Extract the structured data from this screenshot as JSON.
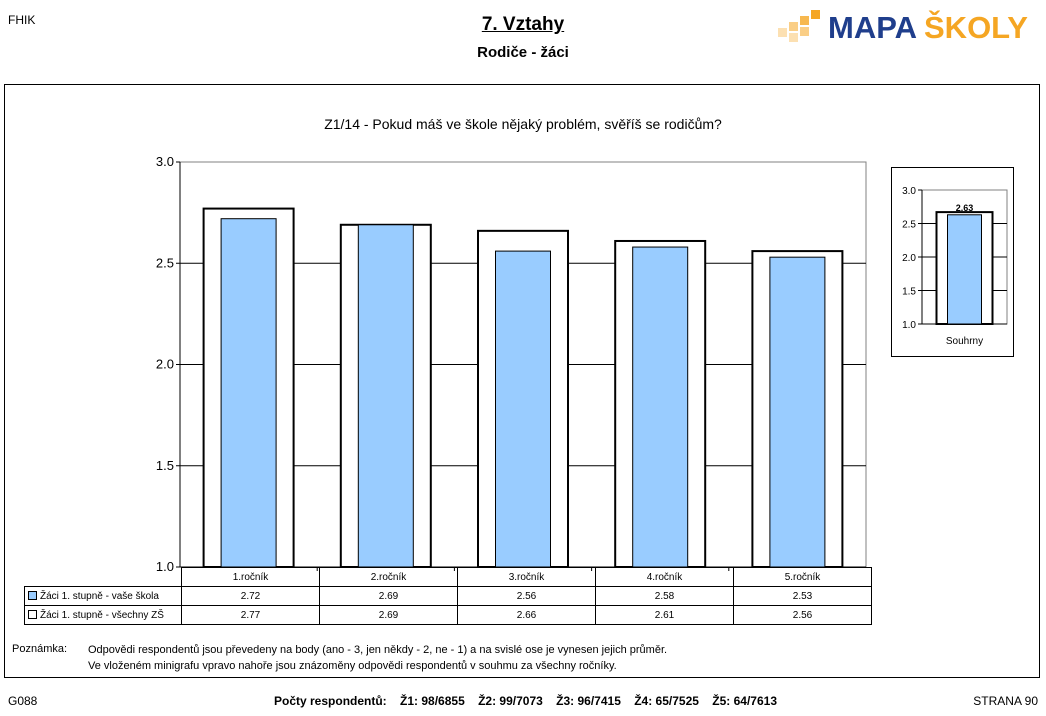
{
  "header": {
    "code": "FHIK",
    "title": "7. Vztahy",
    "subtitle": "Rodiče - žáci",
    "logo_text_a": "MAPA",
    "logo_text_b": "ŠKOLY"
  },
  "colors": {
    "bar_fill": "#99CCFF",
    "bar_outline": "#000000",
    "logo_blue": "#1F3E8C",
    "logo_orange": "#F5A623"
  },
  "chart_data": [
    {
      "type": "bar",
      "title": "Z1/14 - Pokud máš ve škole nějaký problém, svěříš se rodičům?",
      "categories": [
        "1.ročník",
        "2.ročník",
        "3.ročník",
        "4.ročník",
        "5.ročník"
      ],
      "series": [
        {
          "name": "Žáci 1. stupně - vaše škola",
          "values": [
            2.72,
            2.69,
            2.56,
            2.58,
            2.53
          ],
          "labels": [
            "2.72",
            "2.69",
            "2.56",
            "2.58",
            "2.53"
          ]
        },
        {
          "name": "Žáci 1. stupně - všechny ZŠ",
          "values": [
            2.77,
            2.69,
            2.66,
            2.61,
            2.56
          ],
          "labels": [
            "2.77",
            "2.69",
            "2.66",
            "2.61",
            "2.56"
          ]
        }
      ],
      "ylim": [
        1.0,
        3.0
      ],
      "yticks": [
        "1.0",
        "1.5",
        "2.0",
        "2.5",
        "3.0"
      ],
      "grid": true
    },
    {
      "type": "bar",
      "categories": [
        "Souhrny"
      ],
      "series": [
        {
          "name": "Žáci 1. stupně - vaše škola",
          "values": [
            2.63
          ]
        },
        {
          "name": "Žáci 1. stupně - všechny ZŠ",
          "values": [
            2.67
          ]
        }
      ],
      "data_label": "2.63",
      "ylim": [
        1.0,
        3.0
      ],
      "yticks": [
        "1.0",
        "1.5",
        "2.0",
        "2.5",
        "3.0"
      ],
      "grid": true
    }
  ],
  "note": {
    "label": "Poznámka:",
    "line1": "Odpovědi respondentů jsou převedeny na body (ano - 3, jen někdy - 2, ne - 1) a na svislé ose je vynesen jejich průměr.",
    "line2": "Ve vloženém minigrafu vpravo nahoře jsou znázoměny odpovědi respondentů v souhmu za všechny ročníky."
  },
  "footer": {
    "left": "G088",
    "counts_label": "Počty respondentů:",
    "counts": [
      "Ž1: 98/6855",
      "Ž2: 99/7073",
      "Ž3: 96/7415",
      "Ž4: 65/7525",
      "Ž5: 64/7613"
    ],
    "right": "STRANA 90"
  }
}
